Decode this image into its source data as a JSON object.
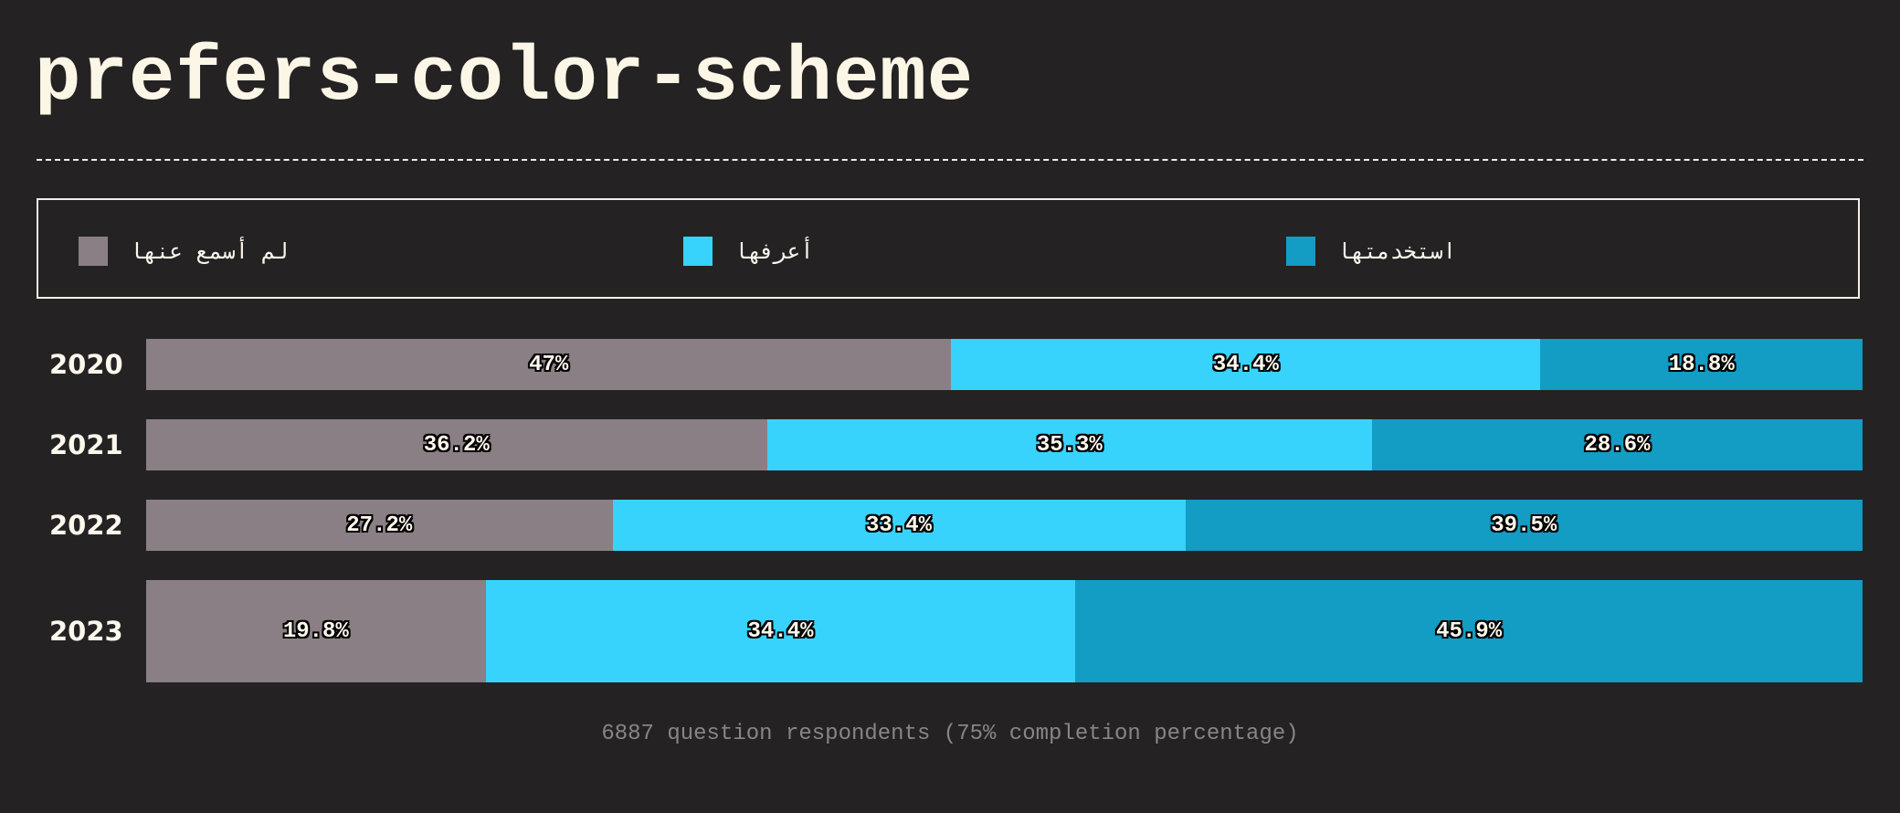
{
  "title": "prefers-color-scheme",
  "legend": [
    {
      "label": "لم أسمع عنها",
      "color": "#8a7f85"
    },
    {
      "label": "أعرفها",
      "color": "#38d3fd"
    },
    {
      "label": "استخدمتها",
      "color": "#139cc4"
    }
  ],
  "chart_data": {
    "type": "bar",
    "orientation": "horizontal",
    "stacked": true,
    "normalized": true,
    "title": "prefers-color-scheme",
    "categories": [
      "2020",
      "2021",
      "2022",
      "2023"
    ],
    "series": [
      {
        "name": "لم أسمع عنها",
        "color": "#8a7f85",
        "values": [
          47,
          36.2,
          27.2,
          19.8
        ],
        "labels": [
          "47%",
          "36.2%",
          "27.2%",
          "19.8%"
        ]
      },
      {
        "name": "أعرفها",
        "color": "#38d3fd",
        "values": [
          34.4,
          35.3,
          33.4,
          34.4
        ],
        "labels": [
          "34.4%",
          "35.3%",
          "33.4%",
          "34.4%"
        ]
      },
      {
        "name": "استخدمتها",
        "color": "#139cc4",
        "values": [
          18.8,
          28.6,
          39.5,
          45.9
        ],
        "labels": [
          "18.8%",
          "28.6%",
          "39.5%",
          "45.9%"
        ]
      }
    ],
    "legend_position": "top",
    "grid": false
  },
  "footnote": "6887 question respondents (75% completion percentage)"
}
